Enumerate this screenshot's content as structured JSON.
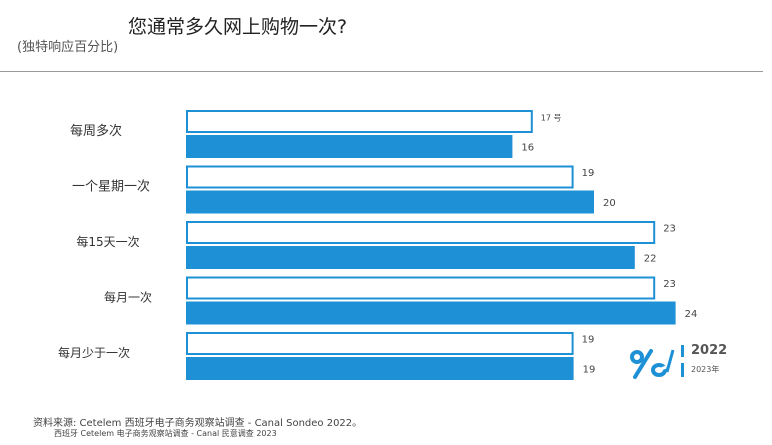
{
  "title": "您通常多久网上购物一次?",
  "subtitle": "(独特响应百分比)",
  "legend": {
    "year_a": "2022",
    "year_b": "2023年"
  },
  "source_lines": [
    "资料来源: Cetelem 西班牙电子商务观察站调查 - Canal Sondeo 2022。",
    "西班牙 Cetelem 电子商务观察站调查 - Canal 民意调查 2023"
  ],
  "colors": {
    "outline_bar": "#1e90d6",
    "filled_bar": "#1e90d6",
    "background": "#ffffff"
  },
  "chart_data": {
    "type": "bar",
    "orientation": "horizontal",
    "categories": [
      "每周多次",
      "一个星期一次",
      "每15天一次",
      "每月一次",
      "每月少于一次"
    ],
    "series": [
      {
        "name": "2022",
        "style": "outline",
        "values": [
          17,
          19,
          23,
          23,
          19
        ]
      },
      {
        "name": "2023年",
        "style": "filled",
        "values": [
          16,
          20,
          22,
          24,
          19
        ]
      }
    ],
    "value_labels": [
      [
        "17 号",
        "16"
      ],
      [
        "19",
        "20"
      ],
      [
        "23",
        "22"
      ],
      [
        "23",
        "24"
      ],
      [
        "19",
        "19"
      ]
    ],
    "xlim": [
      0,
      24
    ],
    "grid": false,
    "legend_position": "right"
  }
}
